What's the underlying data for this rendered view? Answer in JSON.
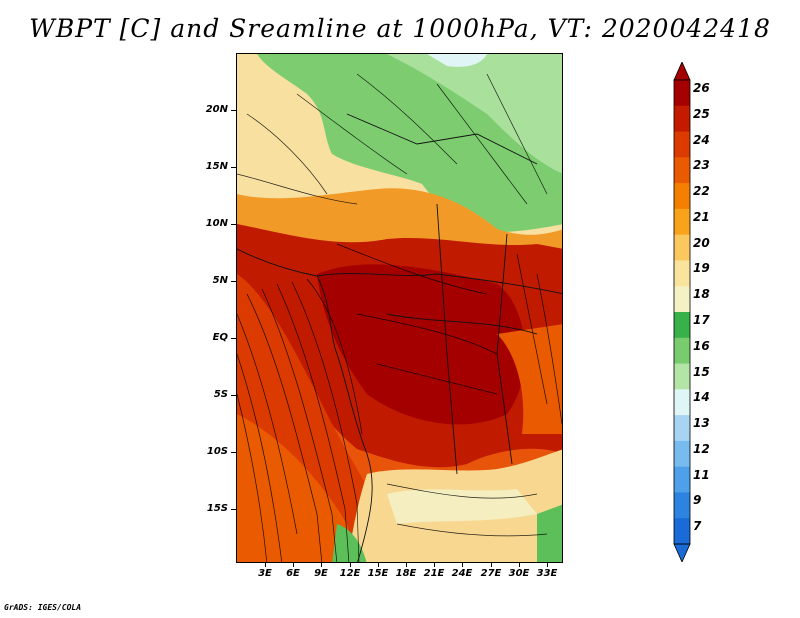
{
  "title": "WBPT [C] and Sreamline at 1000hPa, VT: 2020042418",
  "credit": "GrADS: IGES/COLA",
  "map": {
    "latitude_labels": [
      "20N",
      "15N",
      "10N",
      "5N",
      "EQ",
      "5S",
      "10S",
      "15S"
    ],
    "longitude_labels": [
      "3E",
      "6E",
      "9E",
      "12E",
      "15E",
      "18E",
      "21E",
      "24E",
      "27E",
      "30E",
      "33E"
    ]
  },
  "colorbar": {
    "levels": [
      "26",
      "25",
      "24",
      "23",
      "22",
      "21",
      "20",
      "19",
      "18",
      "17",
      "16",
      "15",
      "14",
      "13",
      "12",
      "11",
      "9",
      "7"
    ],
    "colors": [
      "#a50000",
      "#c41a00",
      "#db3a00",
      "#ea5a00",
      "#f57f00",
      "#f9a31a",
      "#fbc860",
      "#fae39c",
      "#f4f2c4",
      "#37b14a",
      "#78cc6e",
      "#b2e5a6",
      "#e0f5f6",
      "#a6d4f2",
      "#78bcef",
      "#4ea0e8",
      "#2d84e0",
      "#1a6bd8"
    ]
  },
  "chart_data": {
    "type": "heatmap",
    "title": "WBPT [C] and Sreamline at 1000hPa, VT: 2020042418",
    "variable": "Wet-bulb potential temperature (C) with streamlines",
    "level_hPa": 1000,
    "valid_time": "2020042418",
    "lat_ticks": [
      "20N",
      "15N",
      "10N",
      "5N",
      "EQ",
      "5S",
      "10S",
      "15S"
    ],
    "lon_ticks": [
      "3E",
      "6E",
      "9E",
      "12E",
      "15E",
      "18E",
      "21E",
      "24E",
      "27E",
      "30E",
      "33E"
    ],
    "colorbar_levels": [
      26,
      25,
      24,
      23,
      22,
      21,
      20,
      19,
      18,
      17,
      16,
      15,
      14,
      13,
      12,
      11,
      9,
      7
    ]
  }
}
